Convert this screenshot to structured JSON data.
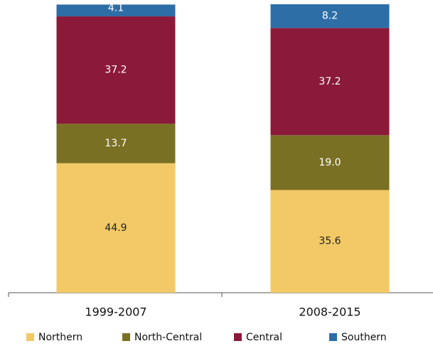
{
  "chart_data": {
    "type": "stacked_bar",
    "categories": [
      "1999-2007",
      "2008-2015"
    ],
    "series": [
      {
        "name": "Northern",
        "color": "#f2c966",
        "values": [
          44.9,
          35.6
        ],
        "label_color": "#222222"
      },
      {
        "name": "North-Central",
        "color": "#7a7024",
        "values": [
          13.7,
          19.0
        ],
        "value_labels": [
          "13.7",
          "19.0"
        ],
        "label_color": "#ffffff"
      },
      {
        "name": "Central",
        "color": "#8b1a3a",
        "values": [
          37.2,
          37.2
        ],
        "label_color": "#ffffff"
      },
      {
        "name": "Southern",
        "color": "#2e6ea6",
        "values": [
          4.1,
          8.2
        ],
        "label_color": "#ffffff"
      }
    ]
  }
}
